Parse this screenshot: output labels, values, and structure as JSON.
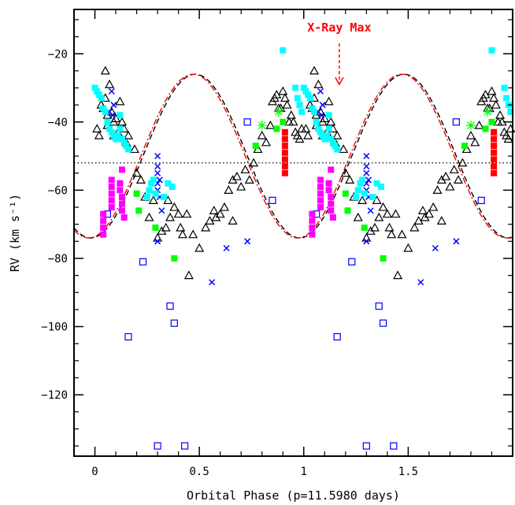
{
  "chart_data": {
    "type": "scatter",
    "xlabel": "Orbital Phase (p=11.5980 days)",
    "ylabel": "RV (km s⁻¹)",
    "xlim": [
      -0.1,
      2.0
    ],
    "ylim": [
      -138,
      -7
    ],
    "x_ticks": [
      0,
      0.5,
      1,
      1.5
    ],
    "x_tick_labels": [
      "0",
      "0.5",
      "1",
      "1.5"
    ],
    "y_ticks": [
      -20,
      -40,
      -60,
      -80,
      -100,
      -120
    ],
    "y_tick_labels": [
      "−20",
      "−40",
      "−60",
      "−80",
      "−100",
      "−120"
    ],
    "annotation": {
      "text": "X-Ray Max",
      "x": 1.17,
      "color": "#ff0000"
    },
    "reference_line": {
      "y": -52,
      "style": "dotted"
    },
    "fits": [
      {
        "style": "dashed",
        "color": "#000000",
        "gamma": -50,
        "K": 24,
        "phi_max": 0.98
      },
      {
        "style": "dash-dot",
        "color": "#ff0000",
        "gamma": -50,
        "K": 24,
        "phi_max": 0.97
      }
    ],
    "series": [
      {
        "marker": "open-triangle",
        "color": "#000000",
        "points": [
          [
            0.01,
            -42
          ],
          [
            0.02,
            -44
          ],
          [
            0.03,
            -35
          ],
          [
            0.04,
            -36
          ],
          [
            0.05,
            -33
          ],
          [
            0.06,
            -38
          ],
          [
            0.07,
            -29
          ],
          [
            0.08,
            -37
          ],
          [
            0.09,
            -40
          ],
          [
            0.1,
            -39
          ],
          [
            0.11,
            -43
          ],
          [
            0.12,
            -34
          ],
          [
            0.13,
            -40
          ],
          [
            0.14,
            -42
          ],
          [
            0.15,
            -46
          ],
          [
            0.16,
            -44
          ],
          [
            0.19,
            -48
          ],
          [
            0.2,
            -55
          ],
          [
            0.22,
            -57
          ],
          [
            0.24,
            -62
          ],
          [
            0.26,
            -68
          ],
          [
            0.28,
            -63
          ],
          [
            0.3,
            -74
          ],
          [
            0.32,
            -72
          ],
          [
            0.34,
            -71
          ],
          [
            0.36,
            -68
          ],
          [
            0.38,
            -65
          ],
          [
            0.4,
            -67
          ],
          [
            0.41,
            -71
          ],
          [
            0.42,
            -73
          ],
          [
            0.44,
            -67
          ],
          [
            0.45,
            -85
          ],
          [
            0.47,
            -73
          ],
          [
            0.5,
            -77
          ],
          [
            0.53,
            -71
          ],
          [
            0.55,
            -69
          ],
          [
            0.57,
            -66
          ],
          [
            0.58,
            -68
          ],
          [
            0.6,
            -67
          ],
          [
            0.62,
            -65
          ],
          [
            0.64,
            -60
          ],
          [
            0.66,
            -57
          ],
          [
            0.68,
            -56
          ],
          [
            0.7,
            -59
          ],
          [
            0.72,
            -54
          ],
          [
            0.74,
            -57
          ],
          [
            0.76,
            -52
          ],
          [
            0.78,
            -48
          ],
          [
            0.8,
            -44
          ],
          [
            0.82,
            -46
          ],
          [
            0.84,
            -41
          ],
          [
            0.85,
            -34
          ],
          [
            0.86,
            -33
          ],
          [
            0.87,
            -32
          ],
          [
            0.88,
            -36
          ],
          [
            0.89,
            -36
          ],
          [
            0.9,
            -31
          ],
          [
            0.91,
            -33
          ],
          [
            0.92,
            -35
          ],
          [
            0.93,
            -40
          ],
          [
            0.94,
            -38
          ],
          [
            0.95,
            -40
          ],
          [
            0.96,
            -43
          ],
          [
            0.97,
            -44
          ],
          [
            0.98,
            -45
          ],
          [
            0.99,
            -42
          ],
          [
            0.06,
            -41
          ],
          [
            0.09,
            -44
          ],
          [
            0.05,
            -25
          ],
          [
            0.35,
            -63
          ],
          [
            0.66,
            -69
          ]
        ]
      },
      {
        "marker": "cross",
        "color": "#0000ff",
        "points": [
          [
            0.07,
            -37
          ],
          [
            0.08,
            -31
          ],
          [
            0.085,
            -38
          ],
          [
            0.09,
            -35
          ],
          [
            0.3,
            -50
          ],
          [
            0.3,
            -53
          ],
          [
            0.3,
            -55
          ],
          [
            0.31,
            -57
          ],
          [
            0.3,
            -60
          ],
          [
            0.31,
            -62
          ],
          [
            0.32,
            -66
          ],
          [
            0.3,
            -75
          ],
          [
            0.63,
            -77
          ],
          [
            0.56,
            -87
          ],
          [
            0.73,
            -75
          ],
          [
            0.3,
            -58
          ]
        ]
      },
      {
        "marker": "open-square",
        "color": "#0000ff",
        "points": [
          [
            0.06,
            -67
          ],
          [
            0.16,
            -103
          ],
          [
            0.23,
            -81
          ],
          [
            0.36,
            -94
          ],
          [
            0.38,
            -99
          ],
          [
            0.3,
            -135
          ],
          [
            0.43,
            -135
          ],
          [
            0.73,
            -40
          ],
          [
            0.85,
            -63
          ]
        ]
      },
      {
        "marker": "filled-square",
        "color": "#00ffff",
        "points": [
          [
            0.0,
            -30
          ],
          [
            0.01,
            -31
          ],
          [
            0.02,
            -32
          ],
          [
            0.03,
            -33
          ],
          [
            0.04,
            -36
          ],
          [
            0.05,
            -37
          ],
          [
            0.06,
            -40
          ],
          [
            0.07,
            -42
          ],
          [
            0.08,
            -43
          ],
          [
            0.09,
            -44
          ],
          [
            0.1,
            -45
          ],
          [
            0.11,
            -44
          ],
          [
            0.12,
            -42
          ],
          [
            0.13,
            -45
          ],
          [
            0.14,
            -46
          ],
          [
            0.15,
            -47
          ],
          [
            0.16,
            -48
          ],
          [
            0.25,
            -62
          ],
          [
            0.26,
            -60
          ],
          [
            0.27,
            -58
          ],
          [
            0.28,
            -57
          ],
          [
            0.29,
            -61
          ],
          [
            0.33,
            -62
          ],
          [
            0.35,
            -58
          ],
          [
            0.37,
            -59
          ],
          [
            0.9,
            -19
          ],
          [
            0.96,
            -30
          ],
          [
            0.97,
            -33
          ],
          [
            0.98,
            -35
          ],
          [
            0.99,
            -37
          ],
          [
            0.12,
            -38
          ]
        ]
      },
      {
        "marker": "filled-square",
        "color": "#ff00ff",
        "points": [
          [
            0.04,
            -67
          ],
          [
            0.04,
            -69
          ],
          [
            0.04,
            -71
          ],
          [
            0.04,
            -73
          ],
          [
            0.08,
            -57
          ],
          [
            0.08,
            -59
          ],
          [
            0.08,
            -61
          ],
          [
            0.08,
            -63
          ],
          [
            0.08,
            -65
          ],
          [
            0.12,
            -60
          ],
          [
            0.13,
            -62
          ],
          [
            0.13,
            -64
          ],
          [
            0.13,
            -66
          ],
          [
            0.14,
            -68
          ],
          [
            0.12,
            -58
          ],
          [
            0.13,
            -54
          ]
        ]
      },
      {
        "marker": "filled-square",
        "color": "#00ff00",
        "points": [
          [
            0.2,
            -61
          ],
          [
            0.21,
            -66
          ],
          [
            0.29,
            -71
          ],
          [
            0.38,
            -80
          ],
          [
            0.77,
            -47
          ],
          [
            0.87,
            -42
          ],
          [
            0.9,
            -40
          ]
        ]
      },
      {
        "marker": "asterisk",
        "color": "#00ff00",
        "points": [
          [
            0.8,
            -41
          ],
          [
            0.88,
            -37
          ]
        ]
      },
      {
        "marker": "filled-square",
        "color": "#ff0000",
        "points": [
          [
            0.91,
            -43
          ],
          [
            0.91,
            -45
          ],
          [
            0.91,
            -47
          ],
          [
            0.91,
            -49
          ],
          [
            0.91,
            -51
          ],
          [
            0.91,
            -53
          ],
          [
            0.91,
            -55
          ]
        ]
      }
    ]
  }
}
